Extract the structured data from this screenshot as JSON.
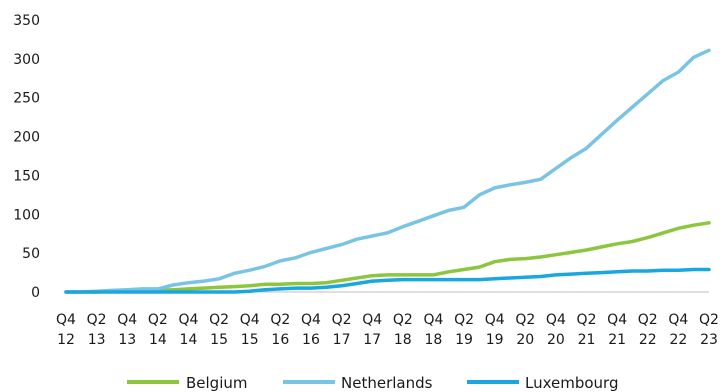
{
  "chart_data": {
    "type": "line",
    "x": [
      "Q4 12",
      "Q1 13",
      "Q2 13",
      "Q3 13",
      "Q4 13",
      "Q1 14",
      "Q2 14",
      "Q3 14",
      "Q4 14",
      "Q1 15",
      "Q2 15",
      "Q3 15",
      "Q4 15",
      "Q1 16",
      "Q2 16",
      "Q3 16",
      "Q4 16",
      "Q1 17",
      "Q2 17",
      "Q3 17",
      "Q4 17",
      "Q1 18",
      "Q2 18",
      "Q3 18",
      "Q4 18",
      "Q1 19",
      "Q2 19",
      "Q3 19",
      "Q4 19",
      "Q1 20",
      "Q2 20",
      "Q3 20",
      "Q4 20",
      "Q1 21",
      "Q2 21",
      "Q3 21",
      "Q4 21",
      "Q1 22",
      "Q2 22",
      "Q3 22",
      "Q4 22",
      "Q1 23",
      "Q2 23"
    ],
    "x_tick_labels": [
      {
        "line1": "Q4",
        "line2": "12"
      },
      {
        "line1": "Q2",
        "line2": "13"
      },
      {
        "line1": "Q4",
        "line2": "13"
      },
      {
        "line1": "Q2",
        "line2": "14"
      },
      {
        "line1": "Q4",
        "line2": "14"
      },
      {
        "line1": "Q2",
        "line2": "15"
      },
      {
        "line1": "Q4",
        "line2": "15"
      },
      {
        "line1": "Q2",
        "line2": "16"
      },
      {
        "line1": "Q4",
        "line2": "16"
      },
      {
        "line1": "Q2",
        "line2": "17"
      },
      {
        "line1": "Q4",
        "line2": "17"
      },
      {
        "line1": "Q2",
        "line2": "18"
      },
      {
        "line1": "Q4",
        "line2": "18"
      },
      {
        "line1": "Q2",
        "line2": "19"
      },
      {
        "line1": "Q4",
        "line2": "19"
      },
      {
        "line1": "Q2",
        "line2": "20"
      },
      {
        "line1": "Q4",
        "line2": "20"
      },
      {
        "line1": "Q2",
        "line2": "21"
      },
      {
        "line1": "Q4",
        "line2": "21"
      },
      {
        "line1": "Q2",
        "line2": "22"
      },
      {
        "line1": "Q4",
        "line2": "22"
      },
      {
        "line1": "Q2",
        "line2": "23"
      }
    ],
    "y_ticks": [
      0,
      50,
      100,
      150,
      200,
      250,
      300,
      350
    ],
    "ylim": [
      0,
      350
    ],
    "grid": false,
    "legend_position": "bottom",
    "series": [
      {
        "name": "Belgium",
        "color": "#8cc63f",
        "values": [
          0,
          0,
          0,
          1,
          1,
          2,
          2,
          3,
          4,
          5,
          6,
          7,
          8,
          10,
          10,
          11,
          11,
          12,
          15,
          18,
          21,
          22,
          22,
          22,
          22,
          26,
          29,
          32,
          39,
          42,
          43,
          45,
          48,
          51,
          54,
          58,
          62,
          65,
          70,
          76,
          82,
          86,
          89
        ]
      },
      {
        "name": "Netherlands",
        "color": "#79c4e4",
        "values": [
          0,
          0,
          1,
          2,
          3,
          4,
          4,
          9,
          12,
          14,
          17,
          24,
          28,
          33,
          40,
          44,
          51,
          56,
          61,
          68,
          72,
          76,
          84,
          91,
          98,
          105,
          109,
          125,
          134,
          138,
          141,
          145,
          159,
          173,
          185,
          203,
          221,
          238,
          255,
          272,
          283,
          302,
          311
        ]
      },
      {
        "name": "Luxembourg",
        "color": "#1aa7e0",
        "values": [
          0,
          0,
          0,
          0,
          0,
          0,
          0,
          0,
          0,
          0,
          0,
          0,
          1,
          3,
          4,
          5,
          5,
          6,
          8,
          11,
          14,
          15,
          16,
          16,
          16,
          16,
          16,
          16,
          17,
          18,
          19,
          20,
          22,
          23,
          24,
          25,
          26,
          27,
          27,
          28,
          28,
          29,
          29
        ]
      }
    ]
  }
}
